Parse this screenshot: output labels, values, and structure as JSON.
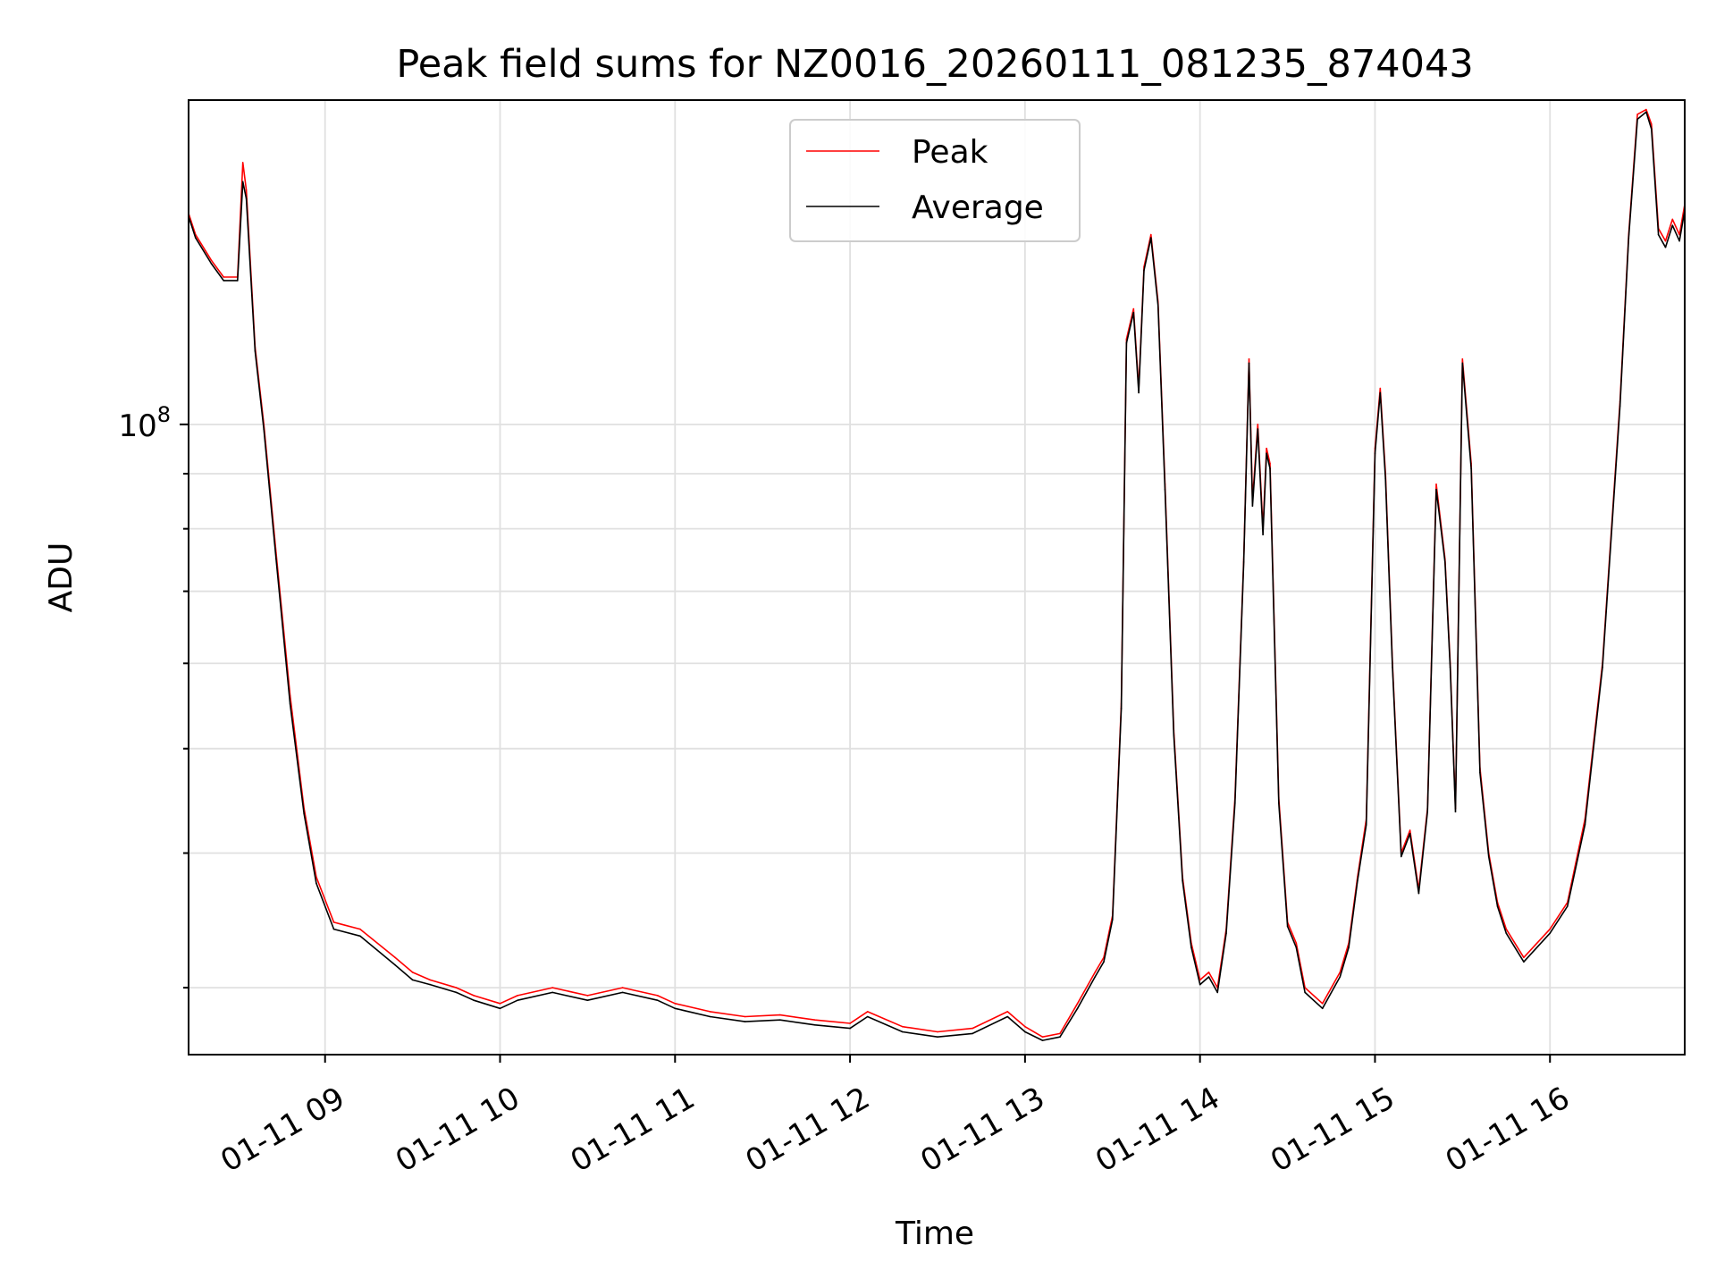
{
  "chart_data": {
    "type": "line",
    "title": "Peak field sums for NZ0016_20260111_081235_874043",
    "xlabel": "Time",
    "ylabel": "ADU",
    "y_scale": "log",
    "ylim": [
      26000000,
      200000000
    ],
    "xlim_hours": [
      8.22,
      16.77
    ],
    "x_ticks": [
      {
        "hour": 9,
        "label": "01-11 09"
      },
      {
        "hour": 10,
        "label": "01-11 10"
      },
      {
        "hour": 11,
        "label": "01-11 11"
      },
      {
        "hour": 12,
        "label": "01-11 12"
      },
      {
        "hour": 13,
        "label": "01-11 13"
      },
      {
        "hour": 14,
        "label": "01-11 14"
      },
      {
        "hour": 15,
        "label": "01-11 15"
      },
      {
        "hour": 16,
        "label": "01-11 16"
      }
    ],
    "y_major_ticks": [
      {
        "value": 100000000,
        "base": "10",
        "exp": "8"
      }
    ],
    "y_minor_ticks": [
      30000000,
      40000000,
      50000000,
      60000000,
      70000000,
      80000000,
      90000000
    ],
    "grid": true,
    "legend": {
      "position": "upper center",
      "entries": [
        "Peak",
        "Average"
      ]
    },
    "series": [
      {
        "name": "Peak",
        "color": "#ff0000",
        "hours": [
          8.22,
          8.26,
          8.35,
          8.42,
          8.5,
          8.53,
          8.55,
          8.6,
          8.65,
          8.72,
          8.8,
          8.88,
          8.95,
          9.05,
          9.2,
          9.4,
          9.5,
          9.6,
          9.75,
          9.85,
          10.0,
          10.1,
          10.3,
          10.5,
          10.7,
          10.9,
          11.0,
          11.2,
          11.4,
          11.6,
          11.8,
          12.0,
          12.1,
          12.3,
          12.5,
          12.7,
          12.9,
          13.0,
          13.1,
          13.2,
          13.3,
          13.4,
          13.45,
          13.5,
          13.55,
          13.58,
          13.62,
          13.65,
          13.68,
          13.72,
          13.76,
          13.8,
          13.85,
          13.9,
          13.95,
          14.0,
          14.05,
          14.1,
          14.15,
          14.2,
          14.25,
          14.28,
          14.3,
          14.33,
          14.36,
          14.38,
          14.4,
          14.45,
          14.5,
          14.55,
          14.6,
          14.7,
          14.8,
          14.85,
          14.9,
          14.95,
          15.0,
          15.03,
          15.06,
          15.1,
          15.15,
          15.2,
          15.25,
          15.3,
          15.35,
          15.4,
          15.43,
          15.46,
          15.5,
          15.55,
          15.6,
          15.65,
          15.7,
          15.75,
          15.85,
          16.0,
          16.1,
          16.2,
          16.3,
          16.4,
          16.45,
          16.5,
          16.55,
          16.58,
          16.62,
          16.66,
          16.7,
          16.74,
          16.77
        ],
        "values": [
          157000000,
          150000000,
          142000000,
          137000000,
          137000000,
          175000000,
          165000000,
          118000000,
          100000000,
          76000000,
          56000000,
          44000000,
          38000000,
          34500000,
          34000000,
          32000000,
          31000000,
          30500000,
          30000000,
          29500000,
          29000000,
          29500000,
          30000000,
          29500000,
          30000000,
          29500000,
          29000000,
          28500000,
          28200000,
          28300000,
          28000000,
          27800000,
          28500000,
          27600000,
          27300000,
          27500000,
          28500000,
          27600000,
          27000000,
          27200000,
          29000000,
          31000000,
          32000000,
          35000000,
          55000000,
          120000000,
          128000000,
          108000000,
          140000000,
          150000000,
          130000000,
          88000000,
          52000000,
          38000000,
          33000000,
          30500000,
          31000000,
          30000000,
          34000000,
          45000000,
          75000000,
          115000000,
          85000000,
          100000000,
          80000000,
          95000000,
          92000000,
          45000000,
          34500000,
          33000000,
          30000000,
          29000000,
          31000000,
          33000000,
          38000000,
          43000000,
          95000000,
          108000000,
          90000000,
          60000000,
          40000000,
          42000000,
          37000000,
          44000000,
          88000000,
          75000000,
          60000000,
          44000000,
          115000000,
          92000000,
          48000000,
          40000000,
          36000000,
          34000000,
          32000000,
          34000000,
          36000000,
          43000000,
          60000000,
          105000000,
          150000000,
          194000000,
          196000000,
          190000000,
          152000000,
          148000000,
          155000000,
          150000000,
          160000000
        ]
      },
      {
        "name": "Average",
        "color": "#000000",
        "hours": [
          8.22,
          8.26,
          8.35,
          8.42,
          8.5,
          8.53,
          8.55,
          8.6,
          8.65,
          8.72,
          8.8,
          8.88,
          8.95,
          9.05,
          9.2,
          9.4,
          9.5,
          9.6,
          9.75,
          9.85,
          10.0,
          10.1,
          10.3,
          10.5,
          10.7,
          10.9,
          11.0,
          11.2,
          11.4,
          11.6,
          11.8,
          12.0,
          12.1,
          12.3,
          12.5,
          12.7,
          12.9,
          13.0,
          13.1,
          13.2,
          13.3,
          13.4,
          13.45,
          13.5,
          13.55,
          13.58,
          13.62,
          13.65,
          13.68,
          13.72,
          13.76,
          13.8,
          13.85,
          13.9,
          13.95,
          14.0,
          14.05,
          14.1,
          14.15,
          14.2,
          14.25,
          14.28,
          14.3,
          14.33,
          14.36,
          14.38,
          14.4,
          14.45,
          14.5,
          14.55,
          14.6,
          14.7,
          14.8,
          14.85,
          14.9,
          14.95,
          15.0,
          15.03,
          15.06,
          15.1,
          15.15,
          15.2,
          15.25,
          15.3,
          15.35,
          15.4,
          15.43,
          15.46,
          15.5,
          15.55,
          15.6,
          15.65,
          15.7,
          15.75,
          15.85,
          16.0,
          16.1,
          16.2,
          16.3,
          16.4,
          16.45,
          16.5,
          16.55,
          16.58,
          16.62,
          16.66,
          16.7,
          16.74,
          16.77
        ],
        "values": [
          156000000,
          149000000,
          141000000,
          136000000,
          136000000,
          168000000,
          162000000,
          117000000,
          99000000,
          75000000,
          55000000,
          43500000,
          37500000,
          34000000,
          33500000,
          31500000,
          30500000,
          30200000,
          29700000,
          29200000,
          28700000,
          29200000,
          29700000,
          29200000,
          29700000,
          29200000,
          28700000,
          28200000,
          27900000,
          28000000,
          27700000,
          27500000,
          28200000,
          27300000,
          27000000,
          27200000,
          28200000,
          27300000,
          26800000,
          27000000,
          28700000,
          30700000,
          31700000,
          34700000,
          54500000,
          119000000,
          127000000,
          107000000,
          139000000,
          149000000,
          129000000,
          87000000,
          51500000,
          37700000,
          32700000,
          30200000,
          30700000,
          29700000,
          33700000,
          44500000,
          74500000,
          114000000,
          84000000,
          99000000,
          79000000,
          94000000,
          91000000,
          44500000,
          34200000,
          32700000,
          29700000,
          28700000,
          30700000,
          32700000,
          37700000,
          42500000,
          94000000,
          107000000,
          89000000,
          59500000,
          39700000,
          41700000,
          36700000,
          43700000,
          87000000,
          74500000,
          59500000,
          43700000,
          114000000,
          91000000,
          47500000,
          39700000,
          35700000,
          33700000,
          31700000,
          33700000,
          35700000,
          42500000,
          59500000,
          104000000,
          149000000,
          192000000,
          195000000,
          188000000,
          150000000,
          146000000,
          153000000,
          148000000,
          158000000
        ]
      }
    ]
  }
}
